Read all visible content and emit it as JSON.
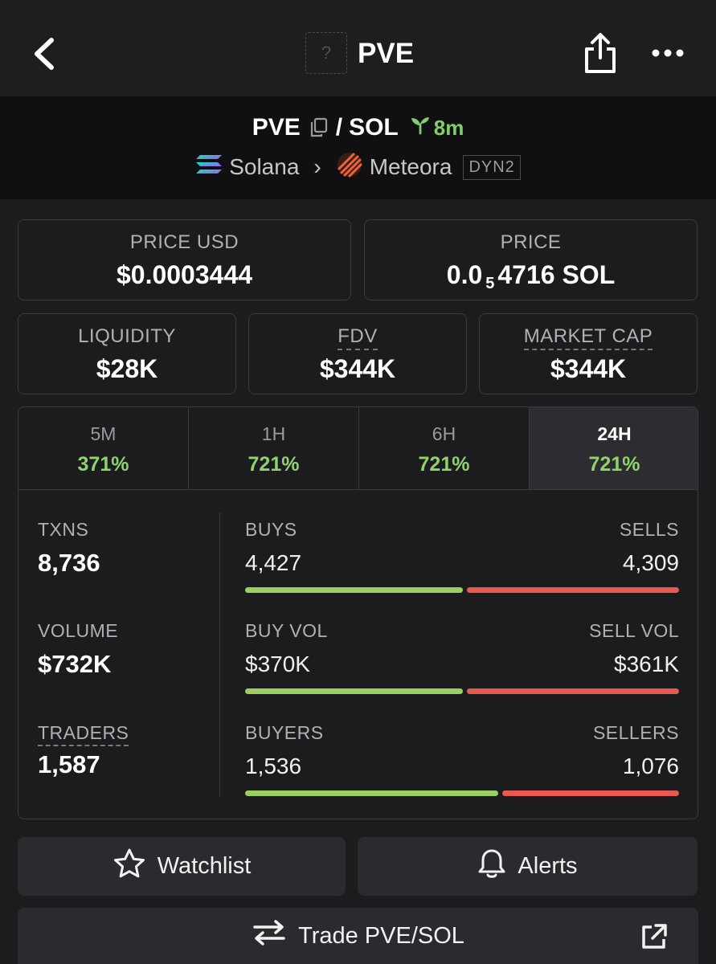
{
  "nav": {
    "title": "PVE",
    "token_icon_placeholder": "?"
  },
  "pair": {
    "base": "PVE",
    "separator": "/",
    "quote": "SOL",
    "age": "8m",
    "chain": "Solana",
    "dex": "Meteora",
    "dex_badge": "DYN2"
  },
  "price_usd": {
    "label": "PRICE USD",
    "value": "$0.0003444"
  },
  "price_native": {
    "label": "PRICE",
    "prefix": "0.0",
    "subscript": "5",
    "digits": "4716",
    "unit": "SOL"
  },
  "liquidity": {
    "label": "LIQUIDITY",
    "value": "$28K"
  },
  "fdv": {
    "label": "FDV",
    "value": "$344K"
  },
  "market_cap": {
    "label": "MARKET CAP",
    "value": "$344K"
  },
  "timeframes": [
    {
      "label": "5M",
      "change": "371%"
    },
    {
      "label": "1H",
      "change": "721%"
    },
    {
      "label": "6H",
      "change": "721%"
    },
    {
      "label": "24H",
      "change": "721%",
      "active": true
    }
  ],
  "stats": {
    "txns": {
      "label": "TXNS",
      "value": "8,736"
    },
    "volume": {
      "label": "VOLUME",
      "value": "$732K"
    },
    "traders": {
      "label": "TRADERS",
      "value": "1,587"
    },
    "buys_label": "BUYS",
    "buys": "4,427",
    "sells_label": "SELLS",
    "sells": "4,309",
    "buy_vol_label": "BUY VOL",
    "buy_vol": "$370K",
    "sell_vol_label": "SELL VOL",
    "sell_vol": "$361K",
    "buyers_label": "BUYERS",
    "buyers": "1,536",
    "sellers_label": "SELLERS",
    "sellers": "1,076",
    "buy_fraction_txns": 0.507,
    "buy_fraction_vol": 0.506,
    "buy_fraction_traders": 0.588
  },
  "actions": {
    "watchlist": "Watchlist",
    "alerts": "Alerts",
    "trade": "Trade PVE/SOL"
  },
  "colors": {
    "positive": "#8fd46a",
    "buy_bar": "#9ccf62",
    "sell_bar": "#e85a50",
    "background": "#1c1c1f",
    "header_bg": "#101012"
  },
  "icons": [
    "back-arrow-icon",
    "share-icon",
    "more-icon",
    "copy-icon",
    "sprout-icon",
    "solana-logo-icon",
    "chevron-right-icon",
    "meteora-logo-icon",
    "star-icon",
    "bell-icon",
    "swap-arrows-icon",
    "external-link-icon"
  ]
}
